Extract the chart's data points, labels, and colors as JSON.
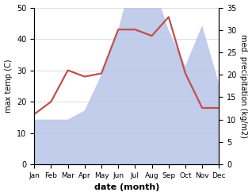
{
  "months": [
    "Jan",
    "Feb",
    "Mar",
    "Apr",
    "May",
    "Jun",
    "Jul",
    "Aug",
    "Sep",
    "Oct",
    "Nov",
    "Dec"
  ],
  "month_positions": [
    1,
    2,
    3,
    4,
    5,
    6,
    7,
    8,
    9,
    10,
    11,
    12
  ],
  "temperature": [
    16,
    20,
    30,
    28,
    29,
    43,
    43,
    41,
    47,
    29,
    18,
    18
  ],
  "precipitation_mm": [
    10,
    10,
    10,
    12,
    20,
    30,
    44,
    41,
    30,
    22,
    31,
    18
  ],
  "temp_ylim": [
    0,
    50
  ],
  "precip_ylim": [
    0,
    35
  ],
  "temp_color": "#c0504d",
  "precip_fill_color": "#b8c4e8",
  "precip_fill_alpha": 0.85,
  "xlabel": "date (month)",
  "ylabel_left": "max temp (C)",
  "ylabel_right": "med. precipitation (kg/m2)",
  "temp_yticks": [
    0,
    10,
    20,
    30,
    40,
    50
  ],
  "precip_yticks": [
    0,
    5,
    10,
    15,
    20,
    25,
    30,
    35
  ],
  "line_width": 1.6,
  "background_color": "#ffffff",
  "tick_fontsize": 7,
  "xlabel_fontsize": 8,
  "ylabel_fontsize": 7
}
